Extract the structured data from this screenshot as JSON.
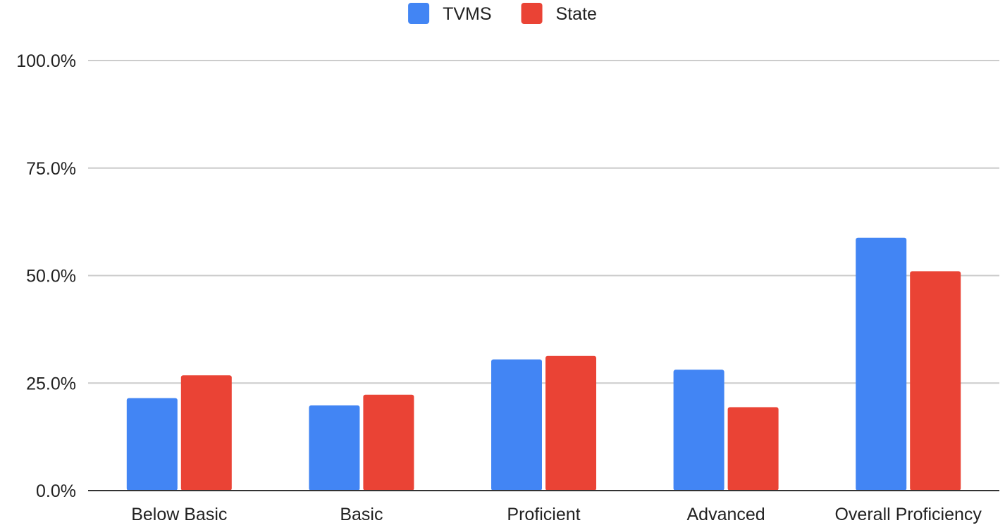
{
  "chart_data": {
    "type": "bar",
    "title": "",
    "xlabel": "",
    "ylabel": "",
    "categories": [
      "Below Basic",
      "Basic",
      "Proficient",
      "Advanced",
      "Overall Proficiency"
    ],
    "series": [
      {
        "name": "TVMS",
        "color": "#4285f4",
        "values": [
          21.5,
          19.8,
          30.5,
          28.1,
          58.8
        ]
      },
      {
        "name": "State",
        "color": "#ea4335",
        "values": [
          26.8,
          22.3,
          31.3,
          19.4,
          51.0
        ]
      }
    ],
    "ylim": [
      0,
      100
    ],
    "y_ticks": [
      "0.0%",
      "25.0%",
      "50.0%",
      "75.0%",
      "100.0%"
    ],
    "y_tick_values": [
      0,
      25,
      50,
      75,
      100
    ],
    "grid": true,
    "legend_position": "top-center"
  }
}
